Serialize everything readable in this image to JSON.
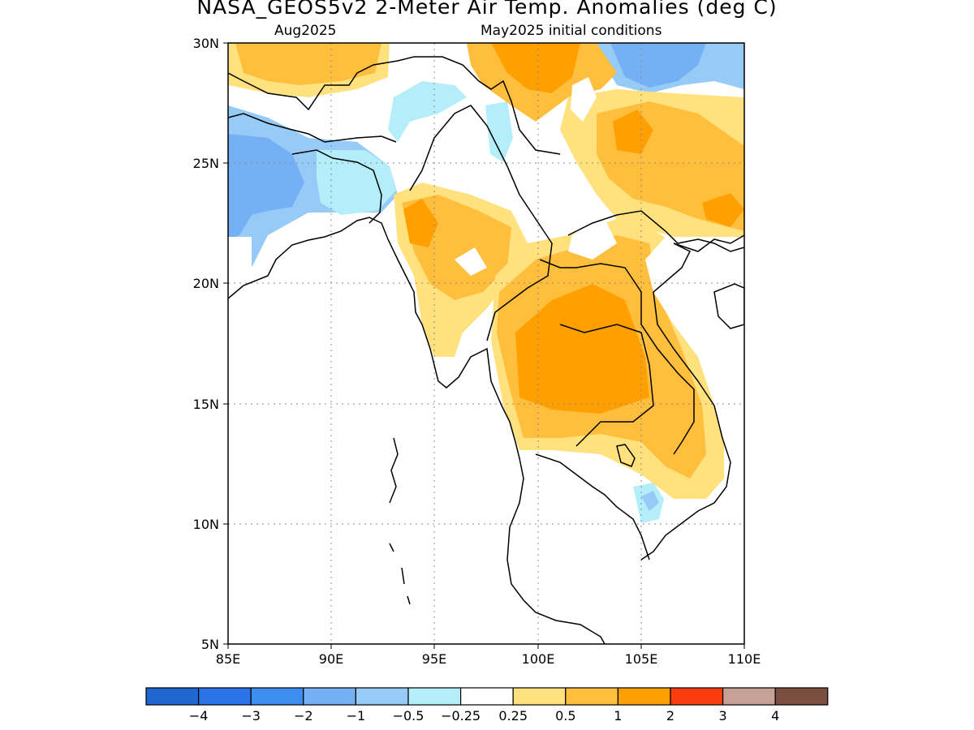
{
  "title": "NASA_GEOS5v2 2-Meter Air Temp. Anomalies (deg C)",
  "subtitle_left": "Aug2025",
  "subtitle_right": "May2025 initial conditions",
  "map": {
    "lon_range": [
      85,
      110
    ],
    "lat_range": [
      5,
      30
    ],
    "x_ticks": [
      "85E",
      "90E",
      "95E",
      "100E",
      "105E",
      "110E"
    ],
    "y_ticks": [
      "5N",
      "10N",
      "15N",
      "20N",
      "25N",
      "30N"
    ],
    "gridlines": "dotted"
  },
  "colorbar": {
    "colors": [
      "#1f66d1",
      "#2a74e8",
      "#3d8ef0",
      "#74b0f3",
      "#96cbf7",
      "#b4eefa",
      "#ffffff",
      "#ffe17e",
      "#ffbe3c",
      "#ffa000",
      "#fb3c0e",
      "#c8a196",
      "#7a4f3f"
    ],
    "labels": [
      "-4",
      "-3",
      "-2",
      "-1",
      "-0.5",
      "-0.25",
      "0.25",
      "0.5",
      "1",
      "2",
      "3",
      "4"
    ]
  }
}
